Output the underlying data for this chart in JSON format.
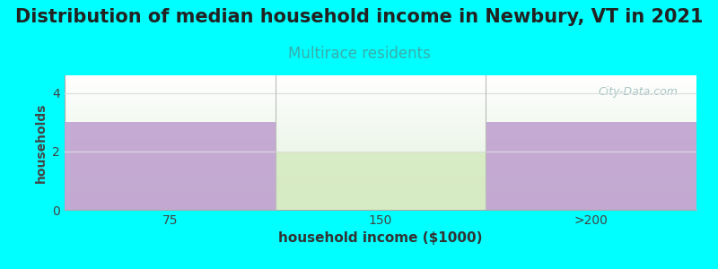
{
  "title": "Distribution of median household income in Newbury, VT in 2021",
  "subtitle": "Multirace residents",
  "xlabel": "household income ($1000)",
  "ylabel": "households",
  "categories": [
    "75",
    "150",
    ">200"
  ],
  "values": [
    3,
    2,
    3
  ],
  "bar_colors": [
    "#BFA0D0",
    "#D5EAC0",
    "#BFA0D0"
  ],
  "bar_width": 1.0,
  "ylim": [
    0,
    4.6
  ],
  "yticks": [
    0,
    2,
    4
  ],
  "background_color": "#00FFFF",
  "plot_bg_top": "#FFFFFF",
  "plot_bg_bottom": "#E0EFDA",
  "title_fontsize": 15,
  "title_color": "#222222",
  "subtitle_color": "#3AACAC",
  "subtitle_fontsize": 12,
  "watermark": "City-Data.com",
  "watermark_color": "#99BBBB",
  "ylabel_fontsize": 10,
  "xlabel_fontsize": 11,
  "tick_fontsize": 10,
  "gridline_color": "#DDDDDD",
  "separator_color": "#BBBBBB"
}
